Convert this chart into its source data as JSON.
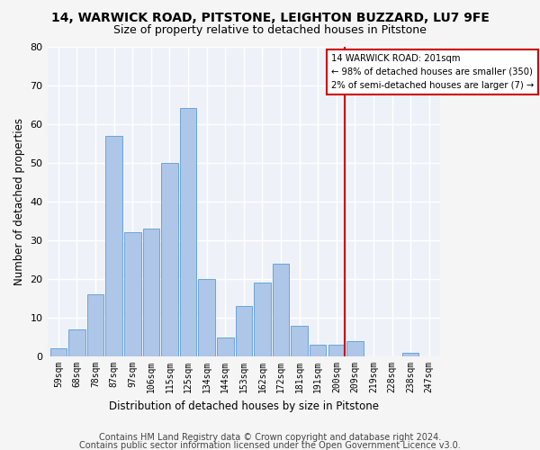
{
  "title1": "14, WARWICK ROAD, PITSTONE, LEIGHTON BUZZARD, LU7 9FE",
  "title2": "Size of property relative to detached houses in Pitstone",
  "xlabel": "Distribution of detached houses by size in Pitstone",
  "ylabel": "Number of detached properties",
  "categories": [
    "59sqm",
    "68sqm",
    "78sqm",
    "87sqm",
    "97sqm",
    "106sqm",
    "115sqm",
    "125sqm",
    "134sqm",
    "144sqm",
    "153sqm",
    "162sqm",
    "172sqm",
    "181sqm",
    "191sqm",
    "200sqm",
    "209sqm",
    "219sqm",
    "228sqm",
    "238sqm",
    "247sqm"
  ],
  "values": [
    2,
    7,
    16,
    57,
    32,
    33,
    50,
    64,
    20,
    5,
    13,
    19,
    24,
    8,
    3,
    3,
    4,
    0,
    0,
    1,
    0
  ],
  "bar_color": "#aec6e8",
  "bar_edge_color": "#5b9bd5",
  "vline_color": "#cc0000",
  "annotation_text": "14 WARWICK ROAD: 201sqm\n← 98% of detached houses are smaller (350)\n2% of semi-detached houses are larger (7) →",
  "annotation_box_color": "#ffffff",
  "annotation_box_edgecolor": "#cc0000",
  "ylim": [
    0,
    80
  ],
  "yticks": [
    0,
    10,
    20,
    30,
    40,
    50,
    60,
    70,
    80
  ],
  "footer1": "Contains HM Land Registry data © Crown copyright and database right 2024.",
  "footer2": "Contains public sector information licensed under the Open Government Licence v3.0.",
  "bg_color": "#eef2f8",
  "grid_color": "#ffffff",
  "title1_fontsize": 10,
  "title2_fontsize": 9,
  "xlabel_fontsize": 8.5,
  "ylabel_fontsize": 8.5,
  "footer_fontsize": 7,
  "vline_bar_index": 15
}
